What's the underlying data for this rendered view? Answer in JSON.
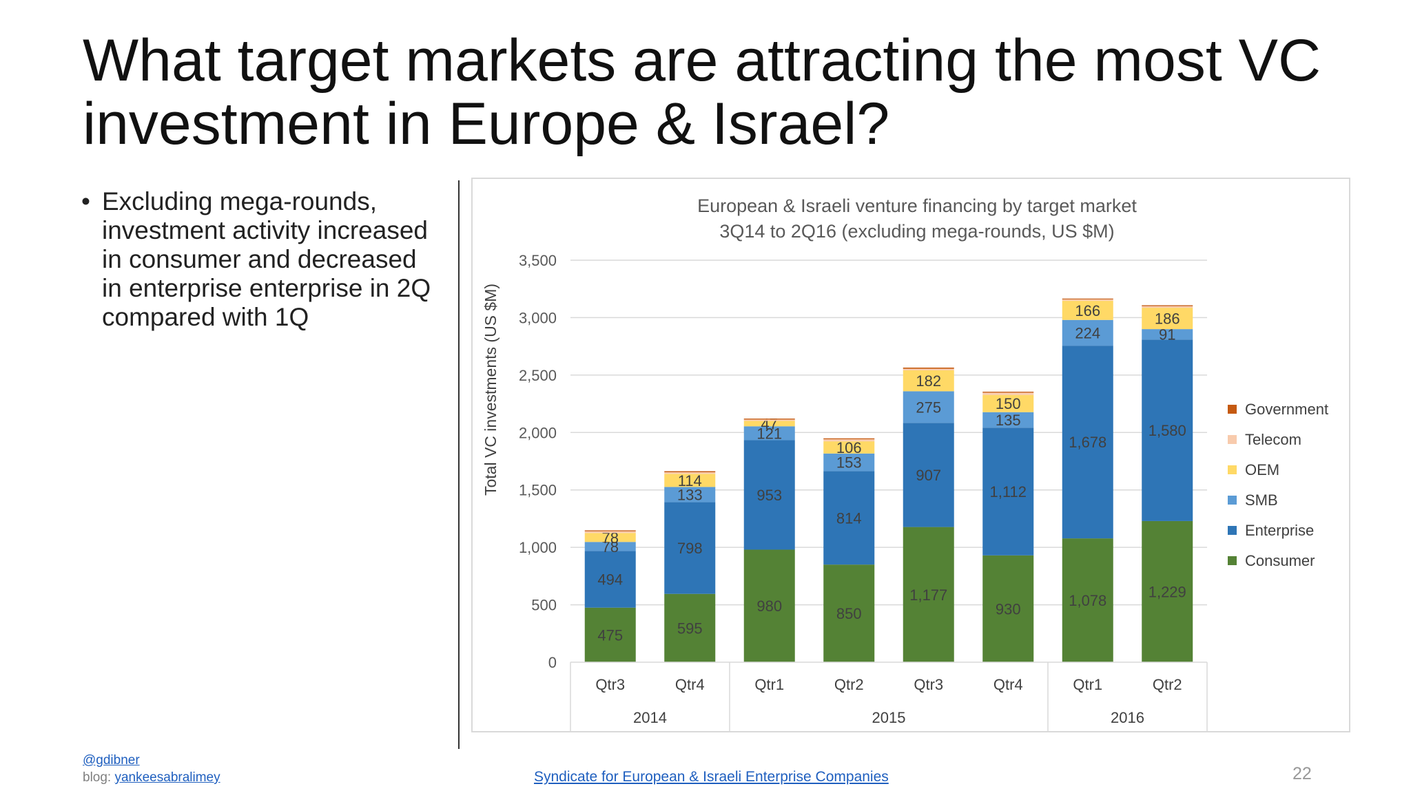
{
  "slide": {
    "title_line1": "What target markets are attracting the most VC",
    "title_line2": "investment in Europe & Israel?",
    "bullets": [
      "Excluding mega-rounds, investment activity increased in consumer and decreased in enterprise enterprise in 2Q compared with 1Q"
    ],
    "footer": {
      "handle": "@gdibner",
      "blog_prefix": "blog:",
      "blog_link": "yankeesabralimey",
      "source": "Syndicate for European & Israeli Enterprise Companies",
      "page_number": "22"
    }
  },
  "chart_data": {
    "type": "bar",
    "stacked": true,
    "title": "European & Israeli venture financing by target market",
    "subtitle": "3Q14 to 2Q16 (excluding mega-rounds, US $M)",
    "ylabel": "Total VC investments (US $M)",
    "xlabel": "",
    "ylim": [
      0,
      3500
    ],
    "yticks": [
      0,
      500,
      1000,
      1500,
      2000,
      2500,
      3000,
      3500
    ],
    "ytick_labels": [
      "0",
      "500",
      "1,000",
      "1,500",
      "2,000",
      "2,500",
      "3,000",
      "3,500"
    ],
    "grid": true,
    "legend_position": "right",
    "categories": [
      "Qtr3",
      "Qtr4",
      "Qtr1",
      "Qtr2",
      "Qtr3",
      "Qtr4",
      "Qtr1",
      "Qtr2"
    ],
    "year_groups": [
      {
        "label": "2014",
        "start": 0,
        "end": 1
      },
      {
        "label": "2015",
        "start": 2,
        "end": 5
      },
      {
        "label": "2016",
        "start": 6,
        "end": 7
      }
    ],
    "series": [
      {
        "name": "Consumer",
        "color": "#548235",
        "values": [
          475,
          595,
          980,
          850,
          1177,
          930,
          1078,
          1229
        ],
        "labels": [
          "475",
          "595",
          "980",
          "850",
          "1,177",
          "930",
          "1,078",
          "1,229"
        ]
      },
      {
        "name": "Enterprise",
        "color": "#2e75b6",
        "values": [
          494,
          798,
          953,
          814,
          907,
          1112,
          1678,
          1580
        ],
        "labels": [
          "494",
          "798",
          "953",
          "814",
          "907",
          "1,112",
          "1,678",
          "1,580"
        ]
      },
      {
        "name": "SMB",
        "color": "#5b9bd5",
        "values": [
          78,
          133,
          121,
          153,
          275,
          135,
          224,
          91
        ],
        "labels": [
          "78",
          "133",
          "121",
          "153",
          "275",
          "135",
          "224",
          "91"
        ]
      },
      {
        "name": "OEM",
        "color": "#ffd966",
        "values": [
          78,
          114,
          47,
          106,
          182,
          150,
          166,
          186
        ],
        "labels": [
          "78",
          "114",
          "47",
          "106",
          "182",
          "150",
          "166",
          "186"
        ]
      },
      {
        "name": "Telecom",
        "color": "#f8cbad",
        "values": [
          15,
          14,
          12,
          18,
          14,
          20,
          13,
          14
        ],
        "labels": [
          "",
          "",
          "",
          "",
          "",
          "",
          "",
          ""
        ]
      },
      {
        "name": "Government",
        "color": "#c55a11",
        "values": [
          8,
          9,
          8,
          8,
          10,
          8,
          7,
          8
        ],
        "labels": [
          "",
          "",
          "",
          "",
          "",
          "",
          "",
          ""
        ]
      }
    ],
    "legend_order": [
      "Government",
      "Telecom",
      "OEM",
      "SMB",
      "Enterprise",
      "Consumer"
    ]
  }
}
